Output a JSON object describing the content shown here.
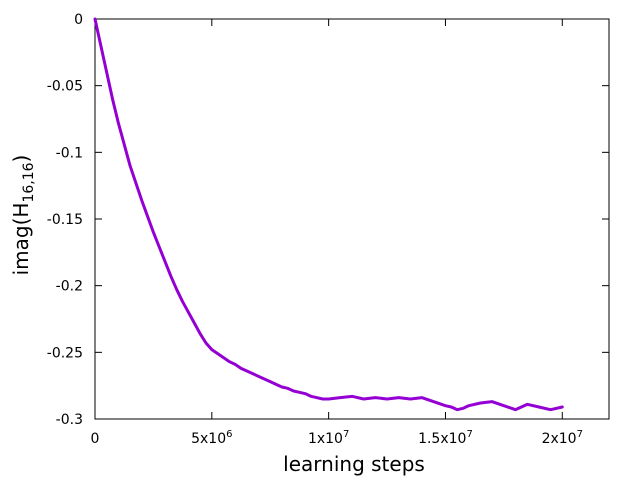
{
  "chart_data": {
    "type": "line",
    "title": "",
    "xlabel": "learning steps",
    "ylabel": {
      "base": "imag(H",
      "subscript": "16,16",
      "close": ")"
    },
    "xlim": [
      0,
      22000000
    ],
    "ylim": [
      -0.3,
      0
    ],
    "grid": false,
    "legend": "none",
    "x_ticks": [
      {
        "value": 0,
        "mantissa": "0",
        "exponent": ""
      },
      {
        "value": 5000000,
        "mantissa": "5x10",
        "exponent": "6"
      },
      {
        "value": 10000000,
        "mantissa": "1x10",
        "exponent": "7"
      },
      {
        "value": 15000000,
        "mantissa": "1.5x10",
        "exponent": "7"
      },
      {
        "value": 20000000,
        "mantissa": "2x10",
        "exponent": "7"
      }
    ],
    "y_ticks": [
      {
        "value": 0,
        "label": "0"
      },
      {
        "value": -0.05,
        "label": "-0.05"
      },
      {
        "value": -0.1,
        "label": "-0.1"
      },
      {
        "value": -0.15,
        "label": "-0.15"
      },
      {
        "value": -0.2,
        "label": "-0.2"
      },
      {
        "value": -0.25,
        "label": "-0.25"
      },
      {
        "value": -0.3,
        "label": "-0.3"
      }
    ],
    "series": [
      {
        "color": "#9400d3",
        "x": [
          0,
          250000,
          500000,
          750000,
          1000000,
          1250000,
          1500000,
          1750000,
          2000000,
          2250000,
          2500000,
          2750000,
          3000000,
          3250000,
          3500000,
          3750000,
          4000000,
          4250000,
          4500000,
          4750000,
          5000000,
          5250000,
          5500000,
          5750000,
          6000000,
          6250000,
          6500000,
          6750000,
          7000000,
          7250000,
          7500000,
          7750000,
          8000000,
          8250000,
          8500000,
          8750000,
          9000000,
          9250000,
          9500000,
          9750000,
          10000000,
          10500000,
          11000000,
          11500000,
          12000000,
          12500000,
          13000000,
          13500000,
          14000000,
          14500000,
          15000000,
          15250000,
          15500000,
          15750000,
          16000000,
          16500000,
          17000000,
          17500000,
          18000000,
          18500000,
          19000000,
          19500000,
          20000000
        ],
        "y": [
          0,
          -0.02,
          -0.04,
          -0.06,
          -0.078,
          -0.094,
          -0.11,
          -0.123,
          -0.136,
          -0.148,
          -0.16,
          -0.171,
          -0.182,
          -0.193,
          -0.203,
          -0.212,
          -0.22,
          -0.228,
          -0.236,
          -0.243,
          -0.248,
          -0.251,
          -0.254,
          -0.257,
          -0.259,
          -0.262,
          -0.264,
          -0.266,
          -0.268,
          -0.27,
          -0.272,
          -0.274,
          -0.276,
          -0.277,
          -0.279,
          -0.28,
          -0.281,
          -0.283,
          -0.284,
          -0.285,
          -0.285,
          -0.284,
          -0.283,
          -0.285,
          -0.284,
          -0.285,
          -0.284,
          -0.285,
          -0.284,
          -0.287,
          -0.29,
          -0.291,
          -0.293,
          -0.292,
          -0.29,
          -0.288,
          -0.287,
          -0.29,
          -0.293,
          -0.289,
          -0.291,
          -0.293,
          -0.291
        ]
      }
    ]
  }
}
